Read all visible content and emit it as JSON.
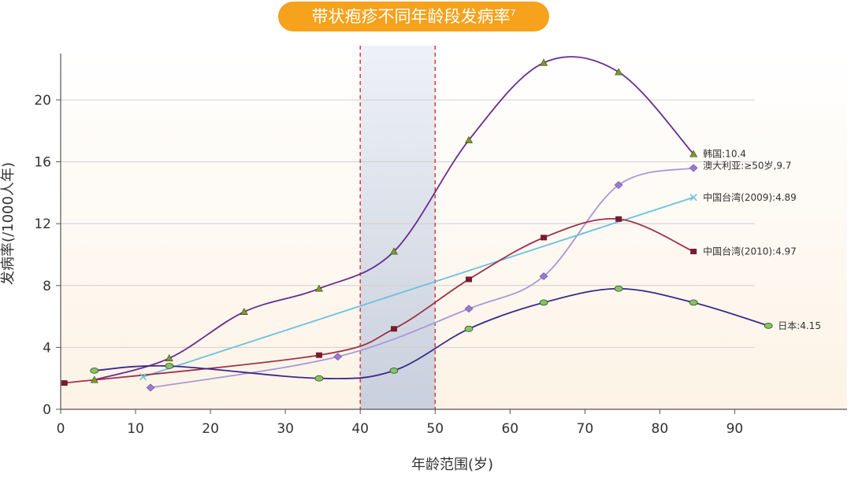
{
  "chart_data": {
    "type": "line",
    "title": "带状疱疹不同年龄段发病率",
    "title_superscript": "7",
    "xlabel": "年龄范围(岁)",
    "ylabel": "发病率(/1000人年)",
    "xlim": [
      0,
      105
    ],
    "ylim": [
      0,
      23
    ],
    "x_ticks": [
      0,
      10,
      20,
      30,
      40,
      50,
      60,
      70,
      80,
      90
    ],
    "y_ticks": [
      0,
      4,
      8,
      12,
      16,
      20
    ],
    "grid": "horizontal",
    "highlight_band": {
      "x_range": [
        40,
        50
      ],
      "border": "red-dashed"
    },
    "background_gradient": [
      "#ffffff",
      "#fdf3e6"
    ],
    "series": [
      {
        "name": "韩国:10.4",
        "color": "#6a2c8e",
        "marker": "triangle",
        "marker_color": "#7a9a2e",
        "x": [
          4.5,
          14.5,
          24.5,
          34.5,
          44.5,
          54.5,
          64.5,
          74.5,
          84.5
        ],
        "y": [
          1.9,
          3.3,
          6.3,
          7.8,
          10.2,
          17.4,
          22.4,
          21.8,
          16.5
        ]
      },
      {
        "name": "澳大利亚:≥50岁,9.7",
        "color": "#a89ad8",
        "marker": "diamond",
        "marker_color": "#9a7ad0",
        "x": [
          12,
          37,
          54.5,
          64.5,
          74.5,
          84.5
        ],
        "y": [
          1.4,
          3.4,
          6.5,
          8.6,
          14.5,
          15.6
        ]
      },
      {
        "name": "中国台湾(2009):4.89",
        "color": "#6cc0dc",
        "marker": "x",
        "marker_color": "#6cc0dc",
        "x": [
          11,
          84.5
        ],
        "y": [
          2.1,
          13.7
        ]
      },
      {
        "name": "中国台湾(2010):4.97",
        "color": "#a0304a",
        "marker": "square",
        "marker_color": "#7a1a30",
        "x": [
          0.5,
          34.5,
          44.5,
          54.5,
          64.5,
          74.5,
          84.5
        ],
        "y": [
          1.7,
          3.5,
          5.2,
          8.4,
          11.1,
          12.3,
          10.2
        ]
      },
      {
        "name": "日本:4.15",
        "color": "#3a2a8c",
        "marker": "circle",
        "marker_color": "#8ac068",
        "x": [
          4.5,
          14.5,
          34.5,
          44.5,
          54.5,
          64.5,
          74.5,
          84.5,
          94.5
        ],
        "y": [
          2.5,
          2.8,
          2.0,
          2.5,
          5.2,
          6.9,
          7.8,
          6.9,
          5.4
        ]
      }
    ]
  }
}
